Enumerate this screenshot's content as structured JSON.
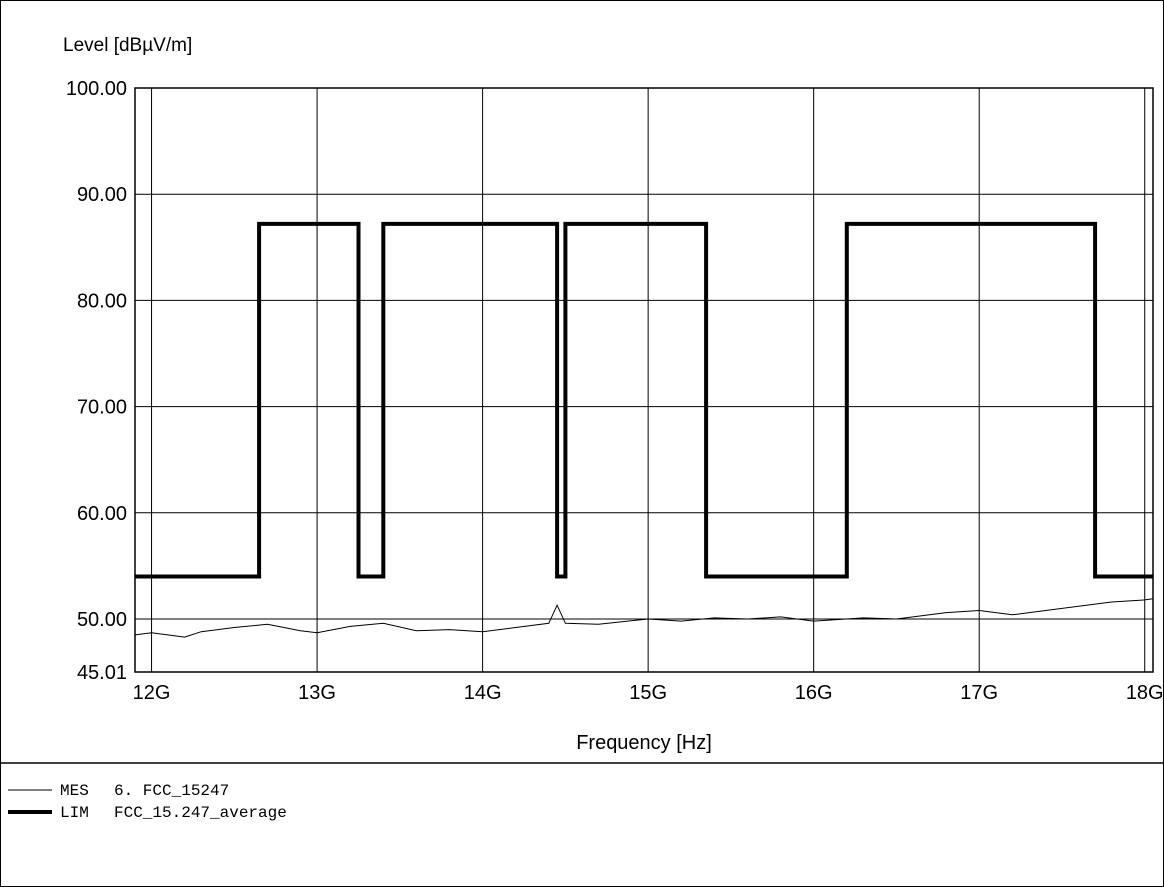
{
  "chart_data": {
    "type": "line",
    "title": "",
    "ylabel": "Level [dBµV/m]",
    "xlabel": "Frequency [Hz]",
    "xlim": [
      11.9,
      18.05
    ],
    "ylim": [
      45.01,
      100.0
    ],
    "yticks": [
      "100.00",
      "90.00",
      "80.00",
      "70.00",
      "60.00",
      "50.00",
      "45.01"
    ],
    "ytick_values": [
      100,
      90,
      80,
      70,
      60,
      50,
      45.01
    ],
    "xticks": [
      "12G",
      "13G",
      "14G",
      "15G",
      "16G",
      "17G",
      "18G"
    ],
    "xtick_values": [
      12,
      13,
      14,
      15,
      16,
      17,
      18
    ],
    "grid": true,
    "legend_position": "bottom-left",
    "series": [
      {
        "name": "LIM",
        "label": "FCC_15.247_average",
        "style": "thick",
        "x": [
          11.9,
          12.65,
          12.65,
          13.25,
          13.25,
          13.4,
          13.4,
          14.45,
          14.45,
          14.5,
          14.5,
          15.35,
          15.35,
          16.2,
          16.2,
          17.7,
          17.7,
          18.05
        ],
        "y": [
          54,
          54,
          87.2,
          87.2,
          54,
          54,
          87.2,
          87.2,
          54,
          54,
          87.2,
          87.2,
          54,
          54,
          87.2,
          87.2,
          54,
          54
        ]
      },
      {
        "name": "MES",
        "label": "6. FCC_15247",
        "style": "thin",
        "x": [
          11.9,
          12.0,
          12.2,
          12.3,
          12.5,
          12.7,
          12.9,
          13.0,
          13.2,
          13.4,
          13.6,
          13.8,
          14.0,
          14.2,
          14.4,
          14.45,
          14.5,
          14.7,
          15.0,
          15.2,
          15.4,
          15.6,
          15.8,
          16.0,
          16.3,
          16.5,
          16.8,
          17.0,
          17.2,
          17.5,
          17.8,
          18.0,
          18.05
        ],
        "y": [
          48.5,
          48.7,
          48.3,
          48.8,
          49.2,
          49.5,
          48.9,
          48.7,
          49.3,
          49.6,
          48.9,
          49.0,
          48.8,
          49.2,
          49.6,
          51.3,
          49.6,
          49.5,
          50.0,
          49.8,
          50.1,
          50.0,
          50.2,
          49.8,
          50.1,
          50.0,
          50.6,
          50.8,
          50.4,
          51.0,
          51.6,
          51.8,
          51.9
        ]
      }
    ]
  },
  "legend": [
    {
      "tag": "MES",
      "text": "6. FCC_15247"
    },
    {
      "tag": "LIM",
      "text": "FCC_15.247_average"
    }
  ]
}
